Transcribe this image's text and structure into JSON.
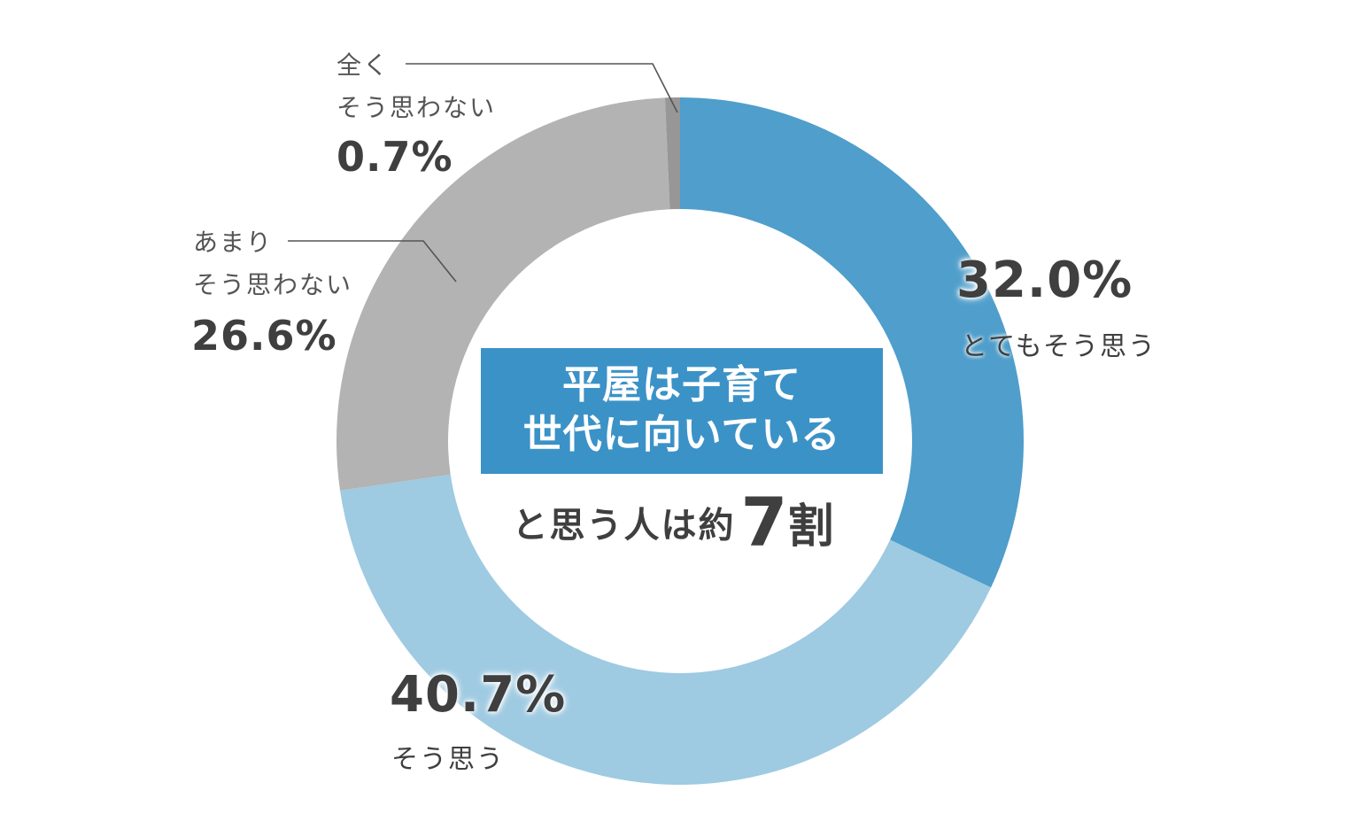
{
  "chart_data": {
    "type": "pie",
    "style": "donut",
    "categories": [
      "とてもそう思う",
      "そう思う",
      "あまりそう思わない",
      "全くそう思わない"
    ],
    "values": [
      32.0,
      40.7,
      26.6,
      0.7
    ],
    "value_labels": [
      "32.0%",
      "40.7%",
      "26.6%",
      "0.7%"
    ],
    "colors": [
      "#4f9ecb",
      "#9ecae2",
      "#b3b3b3",
      "#979797"
    ],
    "legend": "none"
  },
  "labels": {
    "strongly_agree": {
      "pct": "32.0%",
      "text": "とてもそう思う"
    },
    "agree": {
      "pct": "40.7%",
      "text": "そう思う"
    },
    "somewhat_disagree": {
      "line1": "あまり",
      "line2": "そう思わない",
      "pct": "26.6%"
    },
    "strongly_disagree": {
      "line1": "全く",
      "line2": "そう思わない",
      "pct": "0.7%"
    }
  },
  "center": {
    "headline_line1": "平屋は子育て",
    "headline_line2": "世代に向いている",
    "sub_prefix": "と思う人は約",
    "sub_number": "7",
    "sub_suffix": "割"
  }
}
